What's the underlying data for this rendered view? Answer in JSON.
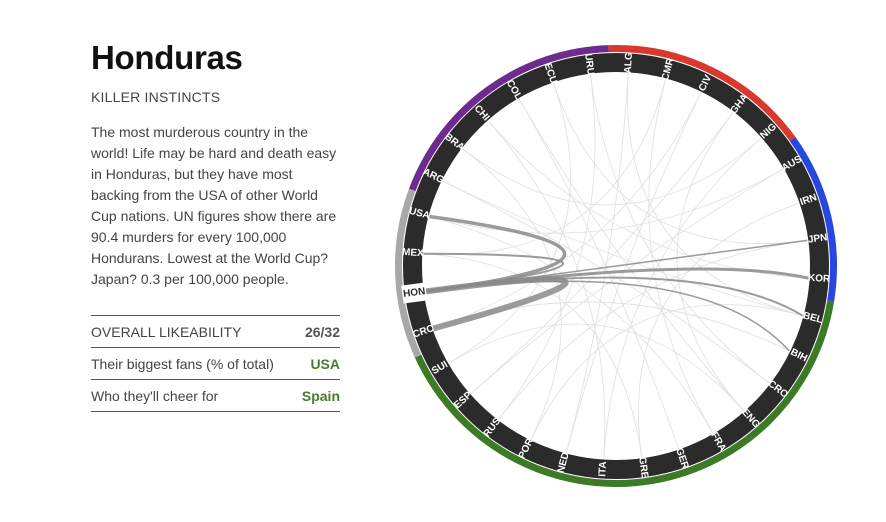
{
  "country": {
    "name": "Honduras",
    "subtitle": "KILLER INSTINCTS",
    "description": "The most murderous country in the world! Life may be hard and death easy in Honduras, but they have most backing from the USA of other World Cup nations. UN figures show there are 90.4 murders for every 100,000 Hondurans. Lowest at the World Cup? Japan? 0.3 per 100,000 people."
  },
  "stats": [
    {
      "label": "OVERALL LIKEABILITY",
      "value": "26/32",
      "style": "dark"
    },
    {
      "label": "Their biggest fans (% of total)",
      "value": "USA",
      "style": "green"
    },
    {
      "label": "Who they'll cheer for",
      "value": "Spain",
      "style": "green"
    }
  ],
  "wheel": {
    "selected": "HON",
    "teams": [
      {
        "code": "ALG",
        "group": "africa"
      },
      {
        "code": "CMR",
        "group": "africa"
      },
      {
        "code": "CIV",
        "group": "africa"
      },
      {
        "code": "GHA",
        "group": "africa"
      },
      {
        "code": "NIG",
        "group": "africa"
      },
      {
        "code": "AUS",
        "group": "asia"
      },
      {
        "code": "IRN",
        "group": "asia"
      },
      {
        "code": "JPN",
        "group": "asia"
      },
      {
        "code": "KOR",
        "group": "asia"
      },
      {
        "code": "BEL",
        "group": "europe"
      },
      {
        "code": "BIH",
        "group": "europe"
      },
      {
        "code": "CRO",
        "group": "europe"
      },
      {
        "code": "ENG",
        "group": "europe"
      },
      {
        "code": "FRA",
        "group": "europe"
      },
      {
        "code": "GER",
        "group": "europe"
      },
      {
        "code": "GRE",
        "group": "europe"
      },
      {
        "code": "ITA",
        "group": "europe"
      },
      {
        "code": "NED",
        "group": "europe"
      },
      {
        "code": "POR",
        "group": "europe"
      },
      {
        "code": "RUS",
        "group": "europe"
      },
      {
        "code": "ESP",
        "group": "europe"
      },
      {
        "code": "SUI",
        "group": "europe"
      },
      {
        "code": "CRC",
        "group": "concacaf"
      },
      {
        "code": "HON",
        "group": "concacaf"
      },
      {
        "code": "MEX",
        "group": "concacaf"
      },
      {
        "code": "USA",
        "group": "concacaf"
      },
      {
        "code": "ARG",
        "group": "south-america"
      },
      {
        "code": "BRA",
        "group": "south-america"
      },
      {
        "code": "CHI",
        "group": "south-america"
      },
      {
        "code": "COL",
        "group": "south-america"
      },
      {
        "code": "ECU",
        "group": "south-america"
      },
      {
        "code": "URU",
        "group": "south-america"
      }
    ],
    "group_colors": {
      "africa": "#d9382e",
      "asia": "#2747e0",
      "europe": "#3d7a26",
      "concacaf": "#a8a8a8",
      "south-america": "#6e2a8c"
    },
    "ring_color": "#2b2b2b",
    "highlight_chords": [
      {
        "to": "USA",
        "weight": 3.5
      },
      {
        "to": "MEX",
        "weight": 2
      },
      {
        "to": "CRC",
        "weight": 6
      },
      {
        "to": "KOR",
        "weight": 3
      },
      {
        "to": "JPN",
        "weight": 1.5
      },
      {
        "to": "BEL",
        "weight": 2
      },
      {
        "to": "BIH",
        "weight": 1.5
      }
    ]
  }
}
